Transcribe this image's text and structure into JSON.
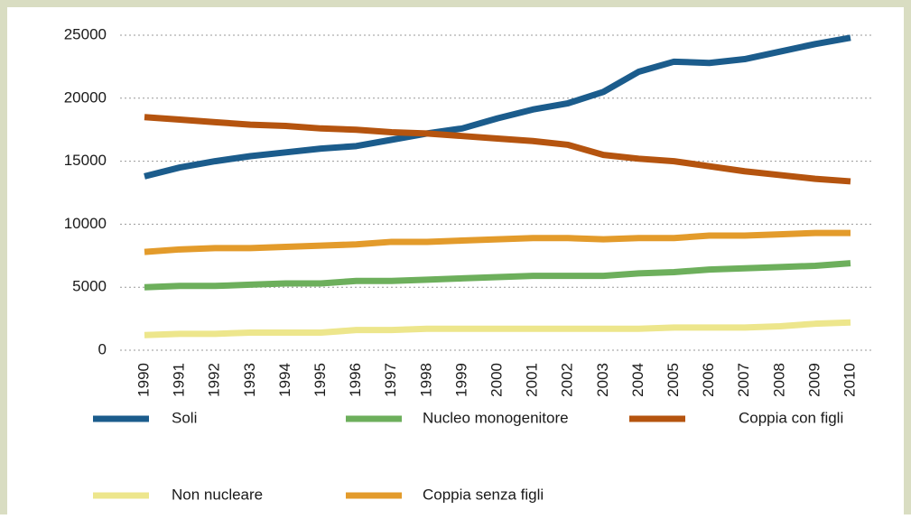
{
  "chart_data": {
    "type": "line",
    "categories": [
      "1990",
      "1991",
      "1992",
      "1993",
      "1994",
      "1995",
      "1996",
      "1997",
      "1998",
      "1999",
      "2000",
      "2001",
      "2002",
      "2003",
      "2004",
      "2005",
      "2006",
      "2007",
      "2008",
      "2009",
      "2010"
    ],
    "series": [
      {
        "name": "Soli",
        "color": "#1b5c8c",
        "values": [
          13800,
          14500,
          15000,
          15400,
          15700,
          16000,
          16200,
          16700,
          17200,
          17600,
          18400,
          19100,
          19600,
          20500,
          22100,
          22900,
          22800,
          23100,
          23700,
          24300,
          24800
        ]
      },
      {
        "name": "Nucleo monogenitore",
        "color": "#6daf5c",
        "values": [
          5000,
          5100,
          5100,
          5200,
          5300,
          5300,
          5500,
          5500,
          5600,
          5700,
          5800,
          5900,
          5900,
          5900,
          6100,
          6200,
          6400,
          6500,
          6600,
          6700,
          6900
        ]
      },
      {
        "name": "Coppia con figli",
        "color": "#b5540f",
        "values": [
          18500,
          18300,
          18100,
          17900,
          17800,
          17600,
          17500,
          17300,
          17200,
          17000,
          16800,
          16600,
          16300,
          15500,
          15200,
          15000,
          14600,
          14200,
          13900,
          13600,
          13400
        ]
      },
      {
        "name": "Non nucleare",
        "color": "#ede68c",
        "values": [
          1200,
          1300,
          1300,
          1400,
          1400,
          1400,
          1600,
          1600,
          1700,
          1700,
          1700,
          1700,
          1700,
          1700,
          1700,
          1800,
          1800,
          1800,
          1900,
          2100,
          2200
        ]
      },
      {
        "name": "Coppia senza figli",
        "color": "#e39b2b",
        "values": [
          7800,
          8000,
          8100,
          8100,
          8200,
          8300,
          8400,
          8600,
          8600,
          8700,
          8800,
          8900,
          8900,
          8800,
          8900,
          8900,
          9100,
          9100,
          9200,
          9300,
          9300
        ]
      }
    ],
    "ylim": [
      0,
      25000
    ],
    "yticks": [
      0,
      5000,
      10000,
      15000,
      20000,
      25000
    ],
    "grid": true
  }
}
